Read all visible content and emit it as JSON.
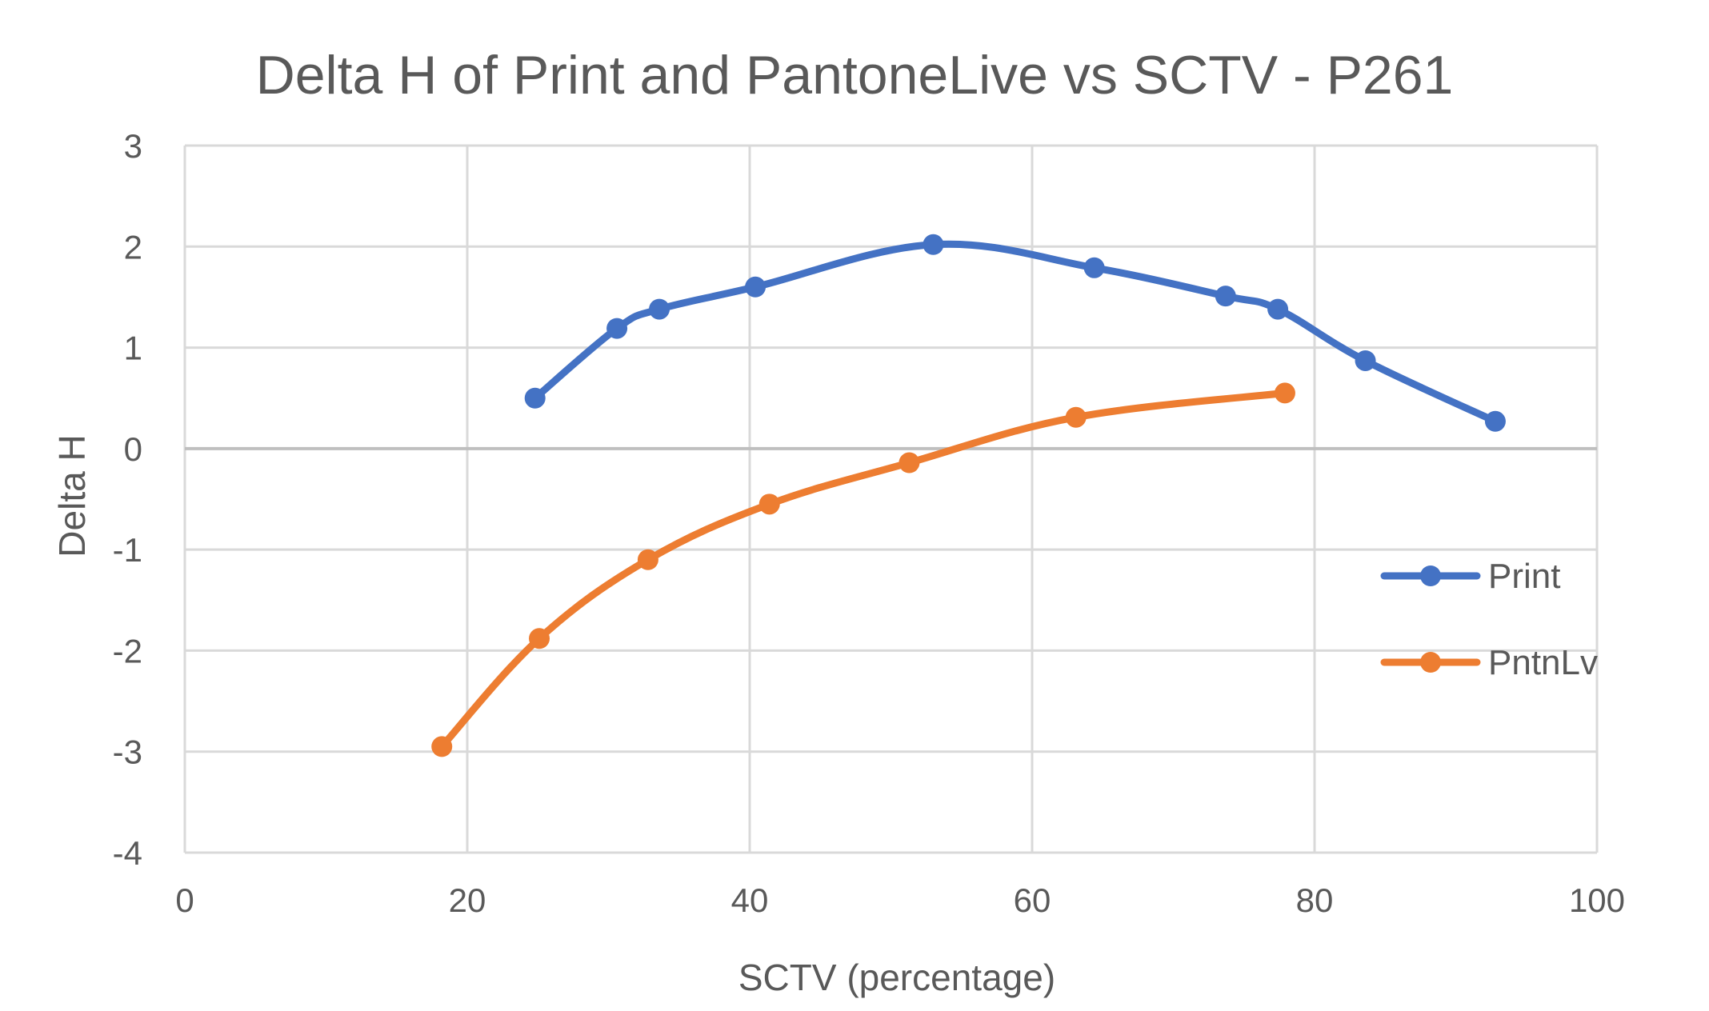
{
  "chart_data": {
    "type": "line",
    "title": "Delta H of Print and PantoneLive vs SCTV - P261",
    "xlabel": "SCTV (percentage)",
    "ylabel": "Delta H",
    "xlim": [
      0,
      100
    ],
    "ylim": [
      -4,
      3
    ],
    "x_ticks": [
      "0",
      "20",
      "40",
      "60",
      "80",
      "100"
    ],
    "y_ticks": [
      "3",
      "2",
      "1",
      "0",
      "-1",
      "-2",
      "-3",
      "-4"
    ],
    "grid": true,
    "smooth": true,
    "legend_position": "right",
    "series": [
      {
        "name": "Print",
        "color": "#4472C4",
        "x": [
          24.8,
          30.6,
          33.6,
          40.4,
          53.0,
          64.4,
          73.7,
          77.4,
          83.6,
          92.8
        ],
        "y": [
          0.5,
          1.19,
          1.38,
          1.6,
          2.02,
          1.79,
          1.51,
          1.38,
          0.87,
          0.27
        ]
      },
      {
        "name": "PntnLv",
        "color": "#ED7D31",
        "x": [
          18.2,
          25.1,
          32.8,
          41.4,
          51.3,
          63.1,
          77.9
        ],
        "y": [
          -2.95,
          -1.88,
          -1.1,
          -0.55,
          -0.14,
          0.31,
          0.55
        ]
      }
    ]
  }
}
